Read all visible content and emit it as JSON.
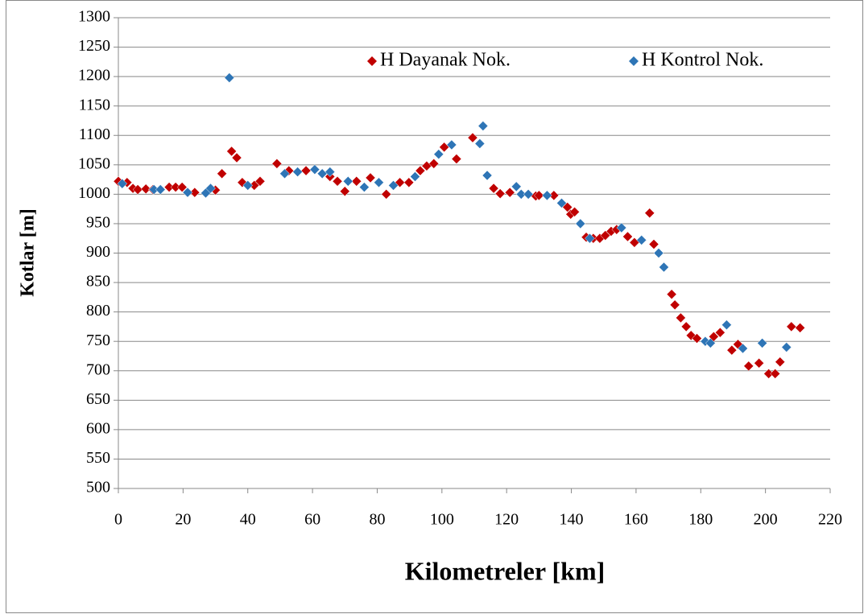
{
  "chart_data": {
    "type": "scatter",
    "xlabel": "Kilometreler [km]",
    "ylabel": "Kotlar [m]",
    "xlim": [
      0,
      220
    ],
    "xticks": [
      0,
      20,
      40,
      60,
      80,
      100,
      120,
      140,
      160,
      180,
      200,
      220
    ],
    "ylim": [
      500,
      1300
    ],
    "yticks": [
      500,
      550,
      600,
      650,
      700,
      750,
      800,
      850,
      900,
      950,
      1000,
      1050,
      1100,
      1150,
      1200,
      1250,
      1300
    ],
    "grid": true,
    "legend": "top",
    "series": [
      {
        "name": "H Dayanak Nok.",
        "color": "#c00000",
        "x": [
          0,
          2.7,
          4.5,
          6,
          8.5,
          10.7,
          15.7,
          17.7,
          19.7,
          23.6,
          30,
          32,
          35,
          36.6,
          38.3,
          42,
          43.8,
          49,
          52.7,
          58,
          65.4,
          67.7,
          70,
          73.6,
          77.9,
          82.8,
          87,
          89.8,
          93.3,
          95.3,
          97.5,
          100.7,
          104.5,
          109.5,
          116,
          118,
          121,
          129,
          130,
          134.6,
          138.8,
          139.8,
          141,
          144.6,
          146.8,
          148.8,
          150.5,
          152.3,
          154,
          157.4,
          159.5,
          164.2,
          165.5,
          171,
          172,
          173.8,
          175.5,
          177,
          178.8,
          184,
          186,
          189.6,
          191.5,
          194.8,
          198,
          201,
          203,
          204.5,
          208,
          210.7
        ],
        "values": [
          1022,
          1020,
          1010,
          1008,
          1009,
          1008,
          1012,
          1012,
          1012,
          1003,
          1007,
          1035,
          1073,
          1062,
          1020,
          1015,
          1022,
          1052,
          1040,
          1040,
          1030,
          1022,
          1005,
          1022,
          1028,
          1000,
          1020,
          1020,
          1040,
          1048,
          1052,
          1080,
          1060,
          1096,
          1010,
          1001,
          1003,
          997,
          998,
          998,
          978,
          966,
          970,
          927,
          925,
          925,
          930,
          937,
          940,
          928,
          918,
          968,
          915,
          830,
          812,
          790,
          775,
          760,
          755,
          758,
          765,
          735,
          745,
          708,
          713,
          695,
          695,
          715,
          775,
          773
        ]
      },
      {
        "name": "H Kontrol Nok.",
        "color": "#2e75b6",
        "x": [
          1.2,
          11,
          13,
          21.4,
          27,
          28.5,
          34.3,
          40,
          51.4,
          55.4,
          60.7,
          63,
          65.4,
          71,
          76,
          80.5,
          85,
          91.7,
          99,
          103,
          111.7,
          112.7,
          114,
          123,
          124.5,
          126.7,
          132.5,
          137,
          142.8,
          145.7,
          155.5,
          161.7,
          167,
          168.6,
          181.4,
          183,
          188,
          193,
          199,
          206.5
        ],
        "values": [
          1018,
          1008,
          1008,
          1003,
          1002,
          1010,
          1198,
          1015,
          1035,
          1038,
          1042,
          1035,
          1038,
          1022,
          1012,
          1020,
          1015,
          1030,
          1068,
          1084,
          1086,
          1116,
          1032,
          1013,
          1000,
          1000,
          998,
          985,
          950,
          925,
          943,
          922,
          900,
          876,
          750,
          747,
          778,
          738,
          747,
          740
        ]
      }
    ]
  }
}
